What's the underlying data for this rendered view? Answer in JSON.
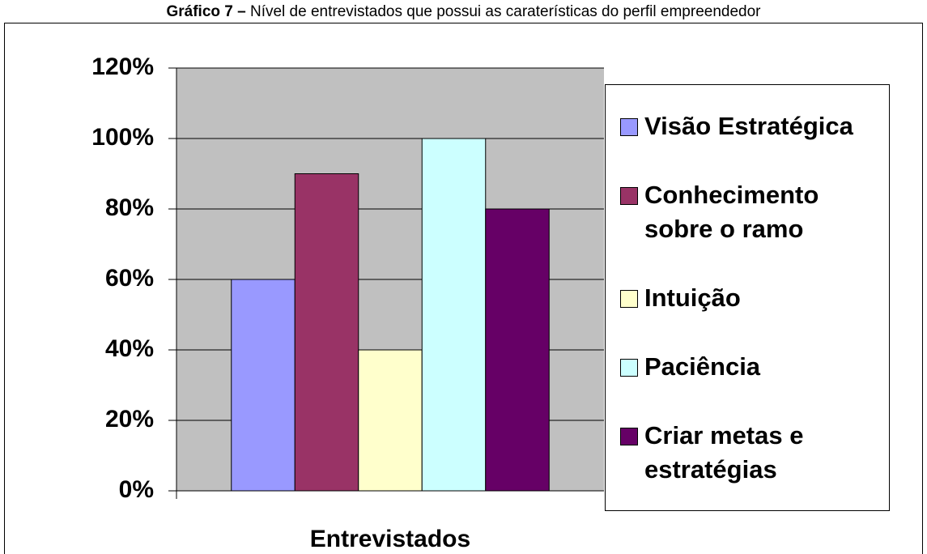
{
  "chart_data": {
    "type": "bar",
    "figure_label": "Gráfico 7 –",
    "title": "Nível de entrevistados que possui as caraterísticas do perfil empreendedor",
    "x_label": "Entrevistados",
    "categories": [
      "Entrevistados"
    ],
    "series": [
      {
        "name": "Visão Estratégica",
        "color": "#9999ff",
        "values": [
          60
        ]
      },
      {
        "name": "Conhecimento sobre o ramo",
        "color": "#993366",
        "values": [
          90
        ]
      },
      {
        "name": "Intuição",
        "color": "#ffffcc",
        "values": [
          40
        ]
      },
      {
        "name": "Paciência",
        "color": "#ccffff",
        "values": [
          100
        ]
      },
      {
        "name": "Criar metas e estratégias",
        "color": "#660066",
        "values": [
          80
        ]
      }
    ],
    "ylim": [
      0,
      120
    ],
    "yticks": [
      {
        "value": 0,
        "label": "0%"
      },
      {
        "value": 20,
        "label": "20%"
      },
      {
        "value": 40,
        "label": "40%"
      },
      {
        "value": 60,
        "label": "60%"
      },
      {
        "value": 80,
        "label": "80%"
      },
      {
        "value": 100,
        "label": "100%"
      },
      {
        "value": 120,
        "label": "120%"
      }
    ],
    "grid": true,
    "plot_background": "#c0c0c0",
    "legend": "right"
  }
}
